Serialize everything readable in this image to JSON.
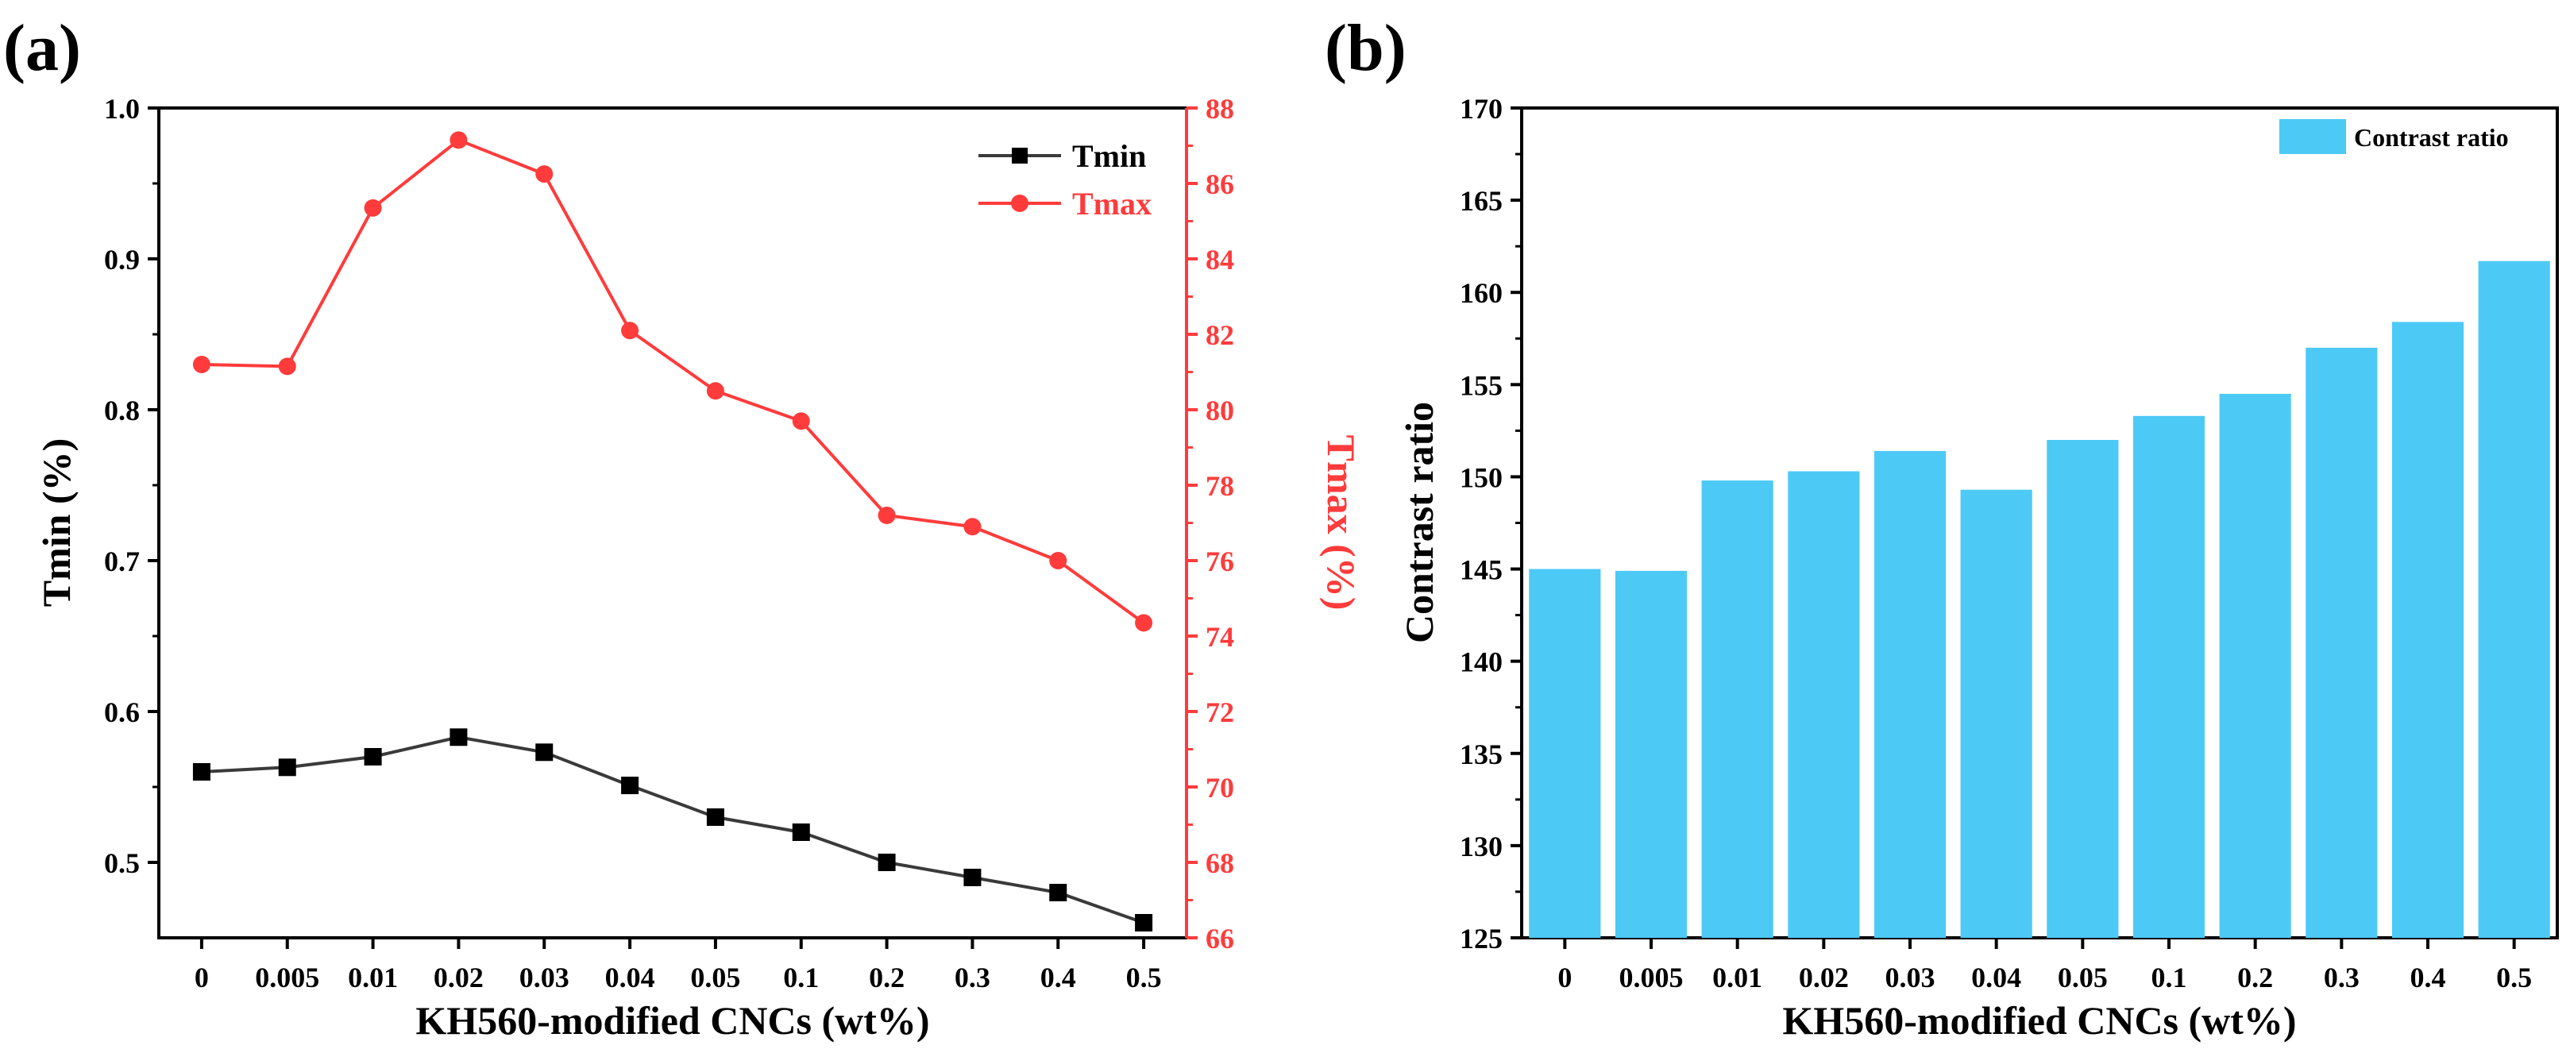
{
  "figure": {
    "panels": [
      "(a)",
      "(b)"
    ]
  },
  "chart_data": [
    {
      "type": "line",
      "panel_label": "(a)",
      "categories": [
        "0",
        "0.005",
        "0.01",
        "0.02",
        "0.03",
        "0.04",
        "0.05",
        "0.1",
        "0.2",
        "0.3",
        "0.4",
        "0.5"
      ],
      "xlabel": "KH560-modified CNCs (wt%)",
      "ylabel": "Tmin (%)",
      "y2label": "Tmax (%)",
      "ylim": [
        0.45,
        1.0
      ],
      "yticks": [
        0.5,
        0.6,
        0.7,
        0.8,
        0.9,
        1.0
      ],
      "ytick_labels": [
        "0.5",
        "0.6",
        "0.7",
        "0.8",
        "0.9",
        "1.0"
      ],
      "y2lim": [
        66,
        88
      ],
      "y2ticks": [
        66,
        68,
        70,
        72,
        74,
        76,
        78,
        80,
        82,
        84,
        86,
        88
      ],
      "y2tick_labels": [
        "66",
        "68",
        "70",
        "72",
        "74",
        "76",
        "78",
        "80",
        "82",
        "84",
        "86",
        "88"
      ],
      "legend_position": "top-right",
      "series": [
        {
          "name": "Tmin",
          "axis": "left",
          "color": "#3a3a3a",
          "marker": "square",
          "values": [
            0.56,
            0.563,
            0.57,
            0.583,
            0.573,
            0.551,
            0.53,
            0.52,
            0.5,
            0.49,
            0.48,
            0.46
          ]
        },
        {
          "name": "Tmax",
          "axis": "right",
          "color": "#ff3b3b",
          "marker": "circle",
          "values": [
            81.2,
            81.15,
            85.35,
            87.15,
            86.25,
            82.1,
            80.5,
            79.7,
            77.2,
            76.9,
            76.0,
            74.35
          ]
        }
      ]
    },
    {
      "type": "bar",
      "panel_label": "(b)",
      "categories": [
        "0",
        "0.005",
        "0.01",
        "0.02",
        "0.03",
        "0.04",
        "0.05",
        "0.1",
        "0.2",
        "0.3",
        "0.4",
        "0.5"
      ],
      "xlabel": "KH560-modified CNCs (wt%)",
      "ylabel": "Contrast ratio",
      "ylim": [
        125,
        170
      ],
      "yticks": [
        125,
        130,
        135,
        140,
        145,
        150,
        155,
        160,
        165,
        170
      ],
      "ytick_labels": [
        "125",
        "130",
        "135",
        "140",
        "145",
        "150",
        "155",
        "160",
        "165",
        "170"
      ],
      "legend_position": "top-right",
      "series": [
        {
          "name": "Contrast ratio",
          "color": "#4dc9f6",
          "values": [
            145.0,
            144.9,
            149.8,
            150.3,
            151.4,
            149.3,
            152.0,
            153.3,
            154.5,
            157.0,
            158.4,
            161.7
          ]
        }
      ]
    }
  ]
}
